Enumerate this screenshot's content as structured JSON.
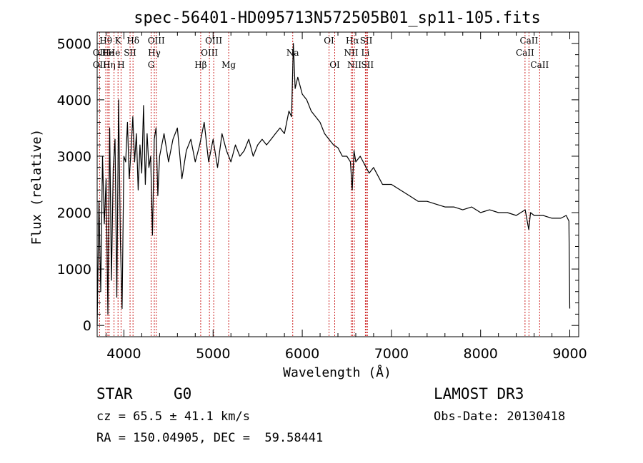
{
  "chart_data": {
    "type": "line",
    "title": "spec-56401-HD095713N572505B01_sp11-105.fits",
    "xlabel": "Wavelength (Å)",
    "ylabel": "Flux (relative)",
    "xlim": [
      3700,
      9100
    ],
    "ylim": [
      -200,
      5200
    ],
    "xticks": [
      4000,
      5000,
      6000,
      7000,
      8000,
      9000
    ],
    "yticks": [
      0,
      1000,
      2000,
      3000,
      4000,
      5000
    ],
    "series": [
      {
        "name": "flux",
        "x": [
          3700,
          3720,
          3740,
          3760,
          3780,
          3800,
          3820,
          3840,
          3860,
          3880,
          3900,
          3920,
          3940,
          3960,
          3980,
          4000,
          4020,
          4040,
          4060,
          4080,
          4100,
          4120,
          4140,
          4160,
          4180,
          4200,
          4220,
          4240,
          4260,
          4280,
          4300,
          4320,
          4340,
          4360,
          4380,
          4400,
          4450,
          4500,
          4550,
          4600,
          4650,
          4700,
          4750,
          4800,
          4850,
          4900,
          4950,
          5000,
          5050,
          5100,
          5150,
          5200,
          5250,
          5300,
          5350,
          5400,
          5450,
          5500,
          5550,
          5600,
          5650,
          5700,
          5750,
          5800,
          5850,
          5880,
          5900,
          5920,
          5950,
          6000,
          6050,
          6100,
          6150,
          6200,
          6250,
          6300,
          6350,
          6400,
          6450,
          6500,
          6540,
          6560,
          6580,
          6600,
          6650,
          6700,
          6750,
          6800,
          6900,
          7000,
          7100,
          7200,
          7300,
          7400,
          7500,
          7600,
          7700,
          7800,
          7900,
          8000,
          8100,
          8200,
          8300,
          8400,
          8500,
          8540,
          8560,
          8600,
          8700,
          8800,
          8900,
          8960,
          8990,
          9000
        ],
        "y": [
          0,
          2200,
          600,
          3000,
          1800,
          2600,
          200,
          3500,
          800,
          2800,
          3300,
          500,
          4000,
          1500,
          300,
          3000,
          2900,
          3600,
          2600,
          3100,
          3700,
          2900,
          3400,
          2400,
          3200,
          2700,
          3900,
          2500,
          3400,
          2800,
          3000,
          1600,
          3300,
          3500,
          2300,
          3000,
          3400,
          2900,
          3300,
          3500,
          2600,
          3100,
          3300,
          2900,
          3200,
          3600,
          2900,
          3300,
          2800,
          3400,
          3100,
          2900,
          3200,
          3000,
          3100,
          3300,
          3000,
          3200,
          3300,
          3200,
          3300,
          3400,
          3500,
          3400,
          3800,
          3700,
          5000,
          4200,
          4400,
          4100,
          4000,
          3800,
          3700,
          3600,
          3400,
          3300,
          3200,
          3150,
          3000,
          3000,
          2900,
          2400,
          3100,
          2900,
          3000,
          2850,
          2700,
          2800,
          2500,
          2500,
          2400,
          2300,
          2200,
          2200,
          2150,
          2100,
          2100,
          2050,
          2100,
          2000,
          2050,
          2000,
          2000,
          1950,
          2050,
          1700,
          2000,
          1950,
          1950,
          1900,
          1900,
          1950,
          1850,
          300
        ]
      }
    ],
    "line_marks": [
      {
        "label": "Hθ",
        "wl": 3797,
        "row": 1
      },
      {
        "label": "OII",
        "wl": 3727,
        "row": 2
      },
      {
        "label": "OII",
        "wl": 3727,
        "row": 3
      },
      {
        "label": "He",
        "wl": 3820,
        "row": 2
      },
      {
        "label": "Hη",
        "wl": 3835,
        "row": 3
      },
      {
        "label": "K",
        "wl": 3934,
        "row": 1
      },
      {
        "label": "He",
        "wl": 3889,
        "row": 2
      },
      {
        "label": "H",
        "wl": 3968,
        "row": 3
      },
      {
        "label": "SII",
        "wl": 4069,
        "row": 2
      },
      {
        "label": "Hδ",
        "wl": 4102,
        "row": 1
      },
      {
        "label": "OIII",
        "wl": 4363,
        "row": 1
      },
      {
        "label": "Hγ",
        "wl": 4341,
        "row": 2
      },
      {
        "label": "G",
        "wl": 4305,
        "row": 3
      },
      {
        "label": "Hβ",
        "wl": 4861,
        "row": 3
      },
      {
        "label": "OIII",
        "wl": 5007,
        "row": 1
      },
      {
        "label": "OIII",
        "wl": 4959,
        "row": 2
      },
      {
        "label": "Mg",
        "wl": 5175,
        "row": 3
      },
      {
        "label": "Na",
        "wl": 5893,
        "row": 2
      },
      {
        "label": "OI",
        "wl": 6300,
        "row": 1
      },
      {
        "label": "OI",
        "wl": 6364,
        "row": 3
      },
      {
        "label": "Hα",
        "wl": 6563,
        "row": 1
      },
      {
        "label": "NII",
        "wl": 6548,
        "row": 2
      },
      {
        "label": "NII",
        "wl": 6584,
        "row": 3
      },
      {
        "label": "SII",
        "wl": 6717,
        "row": 1
      },
      {
        "label": "Li",
        "wl": 6708,
        "row": 2
      },
      {
        "label": "SII",
        "wl": 6731,
        "row": 3
      },
      {
        "label": "CaII",
        "wl": 8542,
        "row": 1
      },
      {
        "label": "CaII",
        "wl": 8498,
        "row": 2
      },
      {
        "label": "CaII",
        "wl": 8662,
        "row": 3
      }
    ]
  },
  "info": {
    "class_label": "STAR",
    "subclass": "G0",
    "survey": "LAMOST DR3",
    "cz": "cz = 65.5 ± 41.1 km/s",
    "obs_date": "Obs-Date: 20130418",
    "coords": "RA = 150.04905, DEC =  59.58441"
  },
  "colors": {
    "line_marker": "#cc2222",
    "spectrum": "#000000"
  }
}
